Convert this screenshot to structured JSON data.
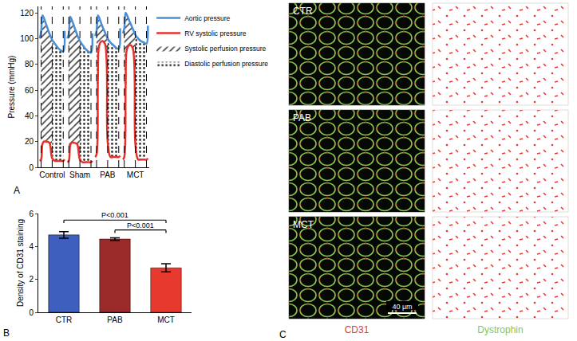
{
  "chart_data": [
    {
      "type": "line",
      "panel_label": "A",
      "y_label": "Pressure (mmHg)",
      "x": [
        0,
        0.05,
        0.1,
        0.15,
        0.25,
        0.35,
        0.45,
        0.55,
        0.65,
        0.75,
        0.85,
        0.9,
        0.95,
        1,
        1.05,
        1.1,
        1.15,
        1.25,
        1.35,
        1.45,
        1.55,
        1.65,
        1.75,
        1.85,
        1.9,
        1.95,
        2,
        2.05,
        2.1,
        2.15,
        2.25,
        2.35,
        2.45,
        2.55,
        2.65,
        2.75,
        2.85,
        2.9,
        2.95,
        3,
        3.05,
        3.1,
        3.15,
        3.25,
        3.35,
        3.45,
        3.55,
        3.65,
        3.75,
        3.85,
        3.9
      ],
      "xlim": [
        -0.05,
        3.95
      ],
      "xticks": [
        {
          "value": 0.45,
          "label": "Control"
        },
        {
          "value": 1.45,
          "label": "Sham"
        },
        {
          "value": 2.45,
          "label": "PAB"
        },
        {
          "value": 3.45,
          "label": "MCT"
        }
      ],
      "ylim": [
        0,
        125
      ],
      "yticks": [
        0,
        20,
        40,
        60,
        80,
        100,
        120
      ],
      "grid": false,
      "legend": "right",
      "series": [
        {
          "name": "Aortic pressure",
          "color": "#4a8fd6",
          "values": [
            100,
            105,
            118,
            116,
            110,
            104,
            99,
            96,
            93,
            91,
            90,
            106,
            null,
            100,
            104,
            117,
            115,
            109,
            103,
            98,
            95,
            92,
            90,
            89,
            104,
            null,
            102,
            106,
            118,
            116,
            110,
            105,
            100,
            97,
            95,
            93,
            92,
            108,
            null,
            104,
            108,
            120,
            118,
            113,
            108,
            103,
            100,
            98,
            97,
            96,
            110
          ]
        },
        {
          "name": "RV systolic pressure",
          "color": "#e8302a",
          "values": [
            5,
            6,
            18,
            20,
            20,
            19,
            7,
            5,
            5,
            5,
            5,
            6,
            null,
            4,
            5,
            17,
            19,
            19,
            18,
            6,
            4,
            4,
            4,
            4,
            5,
            null,
            8,
            10,
            70,
            95,
            98,
            96,
            20,
            8,
            8,
            8,
            8,
            9,
            null,
            6,
            8,
            65,
            92,
            95,
            93,
            18,
            6,
            6,
            6,
            6,
            7
          ]
        }
      ],
      "areas": [
        {
          "name": "Systolic perfusion pressure",
          "lower": "RV systolic pressure",
          "upper": "Aortic pressure",
          "intervals": [
            [
              0.05,
              0.45
            ],
            [
              1.05,
              1.45
            ],
            [
              2.05,
              2.45
            ],
            [
              3.05,
              3.45
            ]
          ]
        },
        {
          "name": "Diastolic perfusion pressure",
          "lower": "RV systolic pressure",
          "upper": "Aortic pressure",
          "intervals": [
            [
              0.45,
              0.85
            ],
            [
              1.45,
              1.85
            ],
            [
              2.45,
              2.85
            ],
            [
              3.45,
              3.85
            ]
          ]
        }
      ]
    },
    {
      "type": "bar",
      "panel_label": "B",
      "y_label": "Density of CD31 staining",
      "categories": [
        "CTR",
        "PAB",
        "MCT"
      ],
      "values": [
        4.7,
        4.45,
        2.7
      ],
      "errors": [
        0.2,
        0.08,
        0.25
      ],
      "colors": [
        "#3f5fbf",
        "#9b2b2b",
        "#e8392e"
      ],
      "ylim": [
        0,
        6
      ],
      "yticks": [
        0,
        2,
        4,
        6
      ],
      "grid": false,
      "comparisons": [
        {
          "from": "CTR",
          "to": "MCT",
          "label": "P<0.001",
          "y": 5.6
        },
        {
          "from": "PAB",
          "to": "MCT",
          "label": "P<0.001",
          "y": 5.0
        }
      ]
    }
  ],
  "image_panel": {
    "panel_label": "C",
    "rows": [
      "CTR",
      "PAB",
      "MCT"
    ],
    "scale_bar": "40 µm",
    "columns": [
      {
        "label": "CD31",
        "color": "#e53935"
      },
      {
        "label": "Dystrophin",
        "color": "#8bc34a"
      }
    ]
  }
}
